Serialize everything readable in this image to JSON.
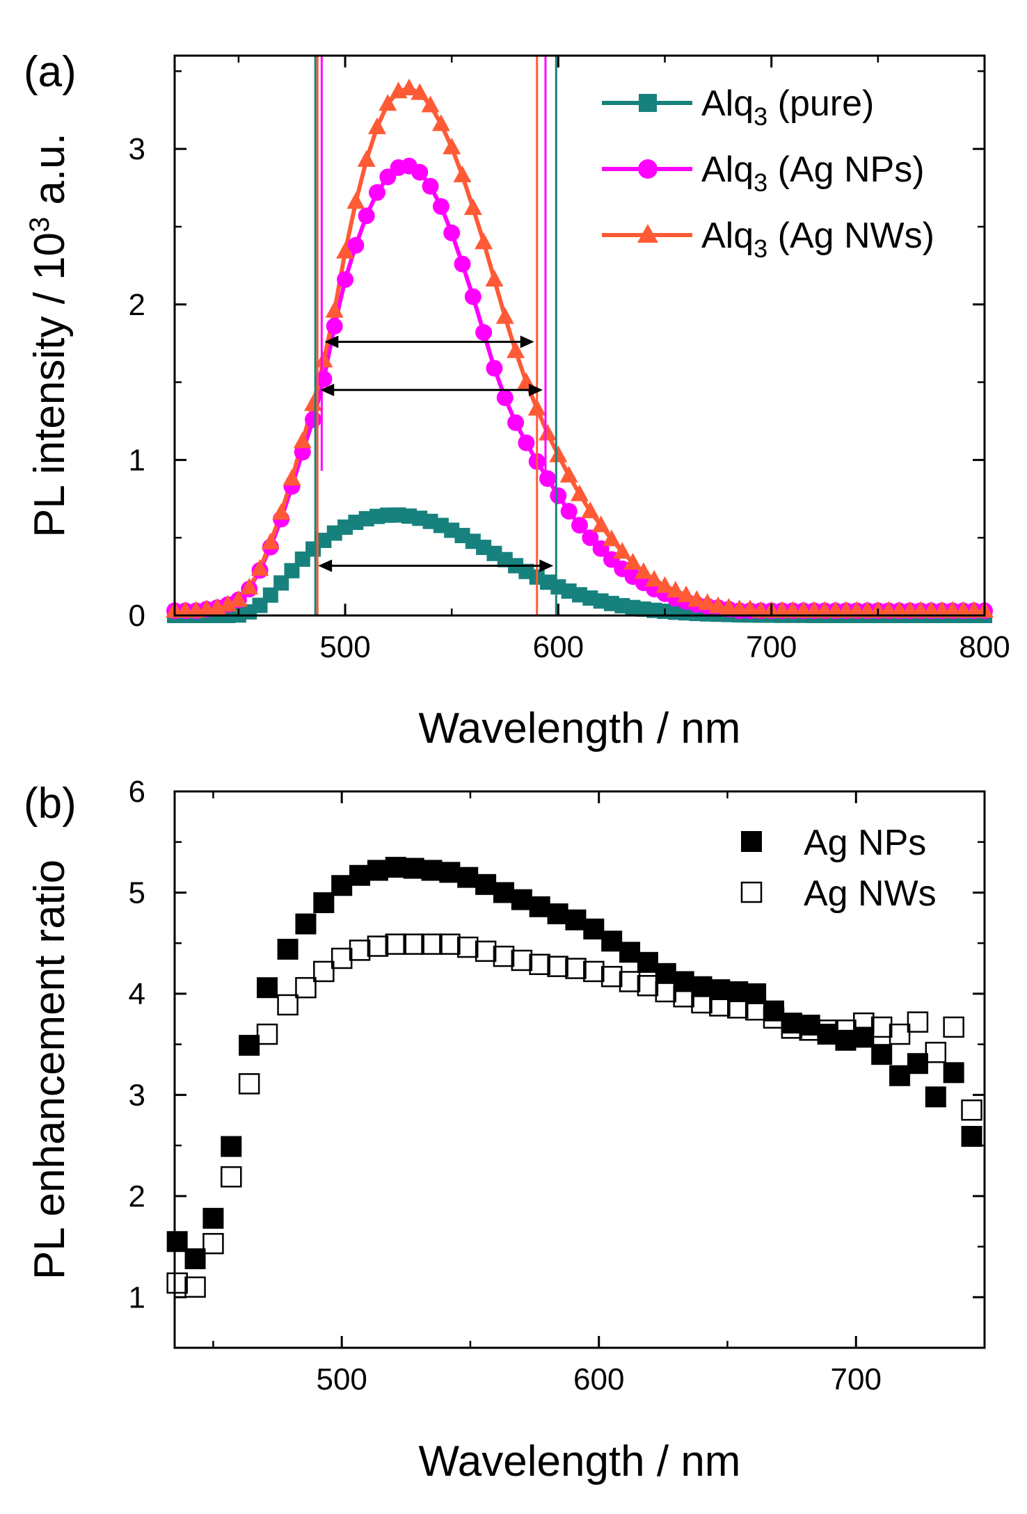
{
  "colors": {
    "pure": "#17817d",
    "nps": "#ff00ff",
    "nws": "#ff5a36",
    "axis": "#000000"
  },
  "chart_data": [
    {
      "type": "line",
      "panel_label": "(a)",
      "xlabel": "Wavelength / nm",
      "ylabel_pre": "PL intensity / 10",
      "ylabel_sup": "3",
      "ylabel_post": " a.u.",
      "xlim": [
        420,
        800
      ],
      "ylim": [
        0,
        3.6
      ],
      "xticks": [
        500,
        600,
        700,
        800
      ],
      "xtick_labels": [
        "500",
        "600",
        "700",
        "800"
      ],
      "xminor": [
        450,
        550,
        650,
        750
      ],
      "yticks": [
        0,
        1,
        2,
        3
      ],
      "ytick_labels": [
        "0",
        "1",
        "2",
        "3"
      ],
      "yminor": [
        0.5,
        1.5,
        2.5,
        3.5
      ],
      "legend_position": "top-right",
      "series": [
        {
          "key": "pure",
          "marker": "square",
          "legend_main": "Alq",
          "legend_sub": "3",
          "legend_rest": " (pure)",
          "x": [
            420,
            425,
            430,
            435,
            440,
            445,
            450,
            455,
            460,
            465,
            470,
            475,
            480,
            485,
            490,
            495,
            500,
            505,
            510,
            515,
            520,
            525,
            530,
            535,
            540,
            545,
            550,
            555,
            560,
            565,
            570,
            575,
            580,
            585,
            590,
            595,
            600,
            605,
            610,
            615,
            620,
            625,
            630,
            635,
            640,
            645,
            650,
            655,
            660,
            665,
            670,
            675,
            680,
            685,
            690,
            695,
            700,
            705,
            710,
            715,
            720,
            725,
            730,
            735,
            740,
            745,
            750,
            755,
            760,
            765,
            770,
            775,
            780,
            785,
            790,
            795,
            800
          ],
          "y": [
            0,
            0,
            0,
            0,
            0,
            0,
            0.003,
            0.023,
            0.065,
            0.131,
            0.209,
            0.288,
            0.362,
            0.427,
            0.483,
            0.53,
            0.568,
            0.599,
            0.622,
            0.637,
            0.645,
            0.646,
            0.639,
            0.625,
            0.605,
            0.579,
            0.548,
            0.514,
            0.477,
            0.438,
            0.399,
            0.359,
            0.32,
            0.283,
            0.247,
            0.214,
            0.184,
            0.157,
            0.133,
            0.112,
            0.093,
            0.077,
            0.063,
            0.051,
            0.041,
            0.033,
            0.027,
            0.021,
            0.017,
            0.013,
            0.01,
            0.008,
            0.006,
            0.004,
            0.003,
            0.002,
            0.002,
            0.001,
            0.001,
            0.001,
            0,
            0,
            0,
            0,
            0,
            0,
            0,
            0,
            0,
            0,
            0,
            0,
            0,
            0,
            0,
            0,
            0
          ]
        },
        {
          "key": "nps",
          "marker": "circle",
          "legend_main": "Alq",
          "legend_sub": "3",
          "legend_rest": " (Ag NPs)",
          "x": [
            420,
            425,
            430,
            435,
            440,
            445,
            450,
            455,
            460,
            465,
            470,
            475,
            480,
            485,
            490,
            495,
            500,
            505,
            510,
            515,
            520,
            525,
            530,
            535,
            540,
            545,
            550,
            555,
            560,
            565,
            570,
            575,
            580,
            585,
            590,
            595,
            600,
            605,
            610,
            615,
            620,
            625,
            630,
            635,
            640,
            645,
            650,
            655,
            660,
            665,
            670,
            675,
            680,
            685,
            690,
            695,
            700,
            705,
            710,
            715,
            720,
            725,
            730,
            735,
            740,
            745,
            750,
            755,
            760,
            765,
            770,
            775,
            780,
            785,
            790,
            795,
            800
          ],
          "y": [
            0.03,
            0.03,
            0.03,
            0.04,
            0.05,
            0.07,
            0.1,
            0.17,
            0.29,
            0.44,
            0.62,
            0.83,
            1.05,
            1.26,
            1.52,
            1.86,
            2.16,
            2.38,
            2.57,
            2.72,
            2.82,
            2.88,
            2.89,
            2.85,
            2.76,
            2.63,
            2.46,
            2.26,
            2.05,
            1.82,
            1.59,
            1.4,
            1.24,
            1.11,
            0.99,
            0.88,
            0.77,
            0.67,
            0.58,
            0.5,
            0.43,
            0.36,
            0.3,
            0.25,
            0.21,
            0.17,
            0.14,
            0.11,
            0.09,
            0.07,
            0.06,
            0.05,
            0.04,
            0.03,
            0.03,
            0.03,
            0.03,
            0.03,
            0.03,
            0.03,
            0.03,
            0.03,
            0.03,
            0.03,
            0.03,
            0.03,
            0.03,
            0.03,
            0.03,
            0.03,
            0.03,
            0.03,
            0.03,
            0.03,
            0.03,
            0.03,
            0.03
          ]
        },
        {
          "key": "nws",
          "marker": "triangle",
          "legend_main": "Alq",
          "legend_sub": "3",
          "legend_rest": " (Ag NWs)",
          "x": [
            420,
            425,
            430,
            435,
            440,
            445,
            450,
            455,
            460,
            465,
            470,
            475,
            480,
            485,
            490,
            495,
            500,
            505,
            510,
            515,
            520,
            525,
            530,
            535,
            540,
            545,
            550,
            555,
            560,
            565,
            570,
            575,
            580,
            585,
            590,
            595,
            600,
            605,
            610,
            615,
            620,
            625,
            630,
            635,
            640,
            645,
            650,
            655,
            660,
            665,
            670,
            675,
            680,
            685,
            690,
            695,
            700,
            705,
            710,
            715,
            720,
            725,
            730,
            735,
            740,
            745,
            750,
            755,
            760,
            765,
            770,
            775,
            780,
            785,
            790,
            795,
            800
          ],
          "y": [
            0.03,
            0.03,
            0.03,
            0.04,
            0.05,
            0.07,
            0.1,
            0.18,
            0.3,
            0.47,
            0.66,
            0.88,
            1.12,
            1.36,
            1.64,
            1.96,
            2.34,
            2.66,
            2.93,
            3.14,
            3.29,
            3.37,
            3.39,
            3.36,
            3.28,
            3.16,
            3.01,
            2.83,
            2.62,
            2.4,
            2.16,
            1.92,
            1.7,
            1.5,
            1.33,
            1.17,
            1.03,
            0.9,
            0.78,
            0.67,
            0.58,
            0.49,
            0.41,
            0.34,
            0.28,
            0.23,
            0.19,
            0.16,
            0.13,
            0.1,
            0.08,
            0.06,
            0.05,
            0.04,
            0.04,
            0.03,
            0.03,
            0.03,
            0.03,
            0.03,
            0.03,
            0.03,
            0.03,
            0.03,
            0.03,
            0.03,
            0.03,
            0.03,
            0.03,
            0.03,
            0.03,
            0.03,
            0.03,
            0.03,
            0.03,
            0.03,
            0.03
          ]
        }
      ],
      "vlines": [
        {
          "key": "pure",
          "x": 486,
          "y0": 0,
          "y1": 3.6
        },
        {
          "key": "pure",
          "x": 599,
          "y0": 0,
          "y1": 3.6
        },
        {
          "key": "nws",
          "x": 487,
          "y0": 0,
          "y1": 3.6
        },
        {
          "key": "nws",
          "x": 590,
          "y0": 0,
          "y1": 3.6
        },
        {
          "key": "nps",
          "x": 489,
          "y0": 0.93,
          "y1": 3.6
        },
        {
          "key": "nps",
          "x": 594,
          "y0": 0.9,
          "y1": 3.6
        }
      ],
      "fwhm_arrows": [
        {
          "x0": 489,
          "x1": 590,
          "y": 1.76
        },
        {
          "x0": 487,
          "x1": 594,
          "y": 1.45
        },
        {
          "x0": 486,
          "x1": 599,
          "y": 0.32
        }
      ]
    },
    {
      "type": "scatter",
      "panel_label": "(b)",
      "xlabel": "Wavelength / nm",
      "ylabel": "PL enhancement ratio",
      "xlim": [
        435,
        750
      ],
      "ylim": [
        0.5,
        6
      ],
      "xticks": [
        500,
        600,
        700
      ],
      "xtick_labels": [
        "500",
        "600",
        "700"
      ],
      "xminor": [
        450,
        550,
        650,
        750
      ],
      "yticks": [
        1,
        2,
        3,
        4,
        5,
        6
      ],
      "ytick_labels": [
        "1",
        "2",
        "3",
        "4",
        "5",
        "6"
      ],
      "yminor": [
        1.5,
        2.5,
        3.5,
        4.5,
        5.5
      ],
      "legend_position": "top-right",
      "series": [
        {
          "name": "Ag NPs",
          "fill": "solid",
          "x": [
            436,
            443,
            450,
            457,
            464,
            471,
            479,
            486,
            493,
            500,
            507,
            514,
            521,
            528,
            535,
            542,
            549,
            556,
            563,
            570,
            577,
            584,
            591,
            598,
            605,
            612,
            619,
            626,
            633,
            640,
            647,
            654,
            661,
            668,
            675,
            682,
            689,
            696,
            703,
            710,
            717,
            724,
            731,
            738,
            745
          ],
          "y": [
            1.55,
            1.38,
            1.78,
            2.49,
            3.49,
            4.06,
            4.44,
            4.69,
            4.9,
            5.07,
            5.17,
            5.22,
            5.25,
            5.24,
            5.22,
            5.2,
            5.15,
            5.08,
            5.0,
            4.93,
            4.86,
            4.79,
            4.73,
            4.64,
            4.52,
            4.41,
            4.31,
            4.2,
            4.12,
            4.07,
            4.04,
            4.02,
            4.0,
            3.83,
            3.71,
            3.69,
            3.6,
            3.54,
            3.57,
            3.4,
            3.19,
            3.31,
            2.98,
            3.22,
            2.59
          ]
        },
        {
          "name": "Ag NWs",
          "fill": "hollow",
          "x": [
            436,
            443,
            450,
            457,
            464,
            471,
            479,
            486,
            493,
            500,
            507,
            514,
            521,
            528,
            535,
            542,
            549,
            556,
            563,
            570,
            577,
            584,
            591,
            598,
            605,
            612,
            619,
            626,
            633,
            640,
            647,
            654,
            661,
            668,
            675,
            682,
            689,
            696,
            703,
            710,
            717,
            724,
            731,
            738,
            745
          ],
          "y": [
            1.14,
            1.1,
            1.53,
            2.19,
            3.11,
            3.6,
            3.89,
            4.06,
            4.22,
            4.35,
            4.43,
            4.47,
            4.49,
            4.49,
            4.49,
            4.49,
            4.46,
            4.42,
            4.37,
            4.33,
            4.29,
            4.27,
            4.25,
            4.22,
            4.17,
            4.12,
            4.08,
            4.02,
            3.97,
            3.91,
            3.88,
            3.86,
            3.84,
            3.76,
            3.66,
            3.64,
            3.64,
            3.64,
            3.71,
            3.67,
            3.6,
            3.72,
            3.42,
            3.67,
            2.85
          ]
        }
      ]
    }
  ]
}
